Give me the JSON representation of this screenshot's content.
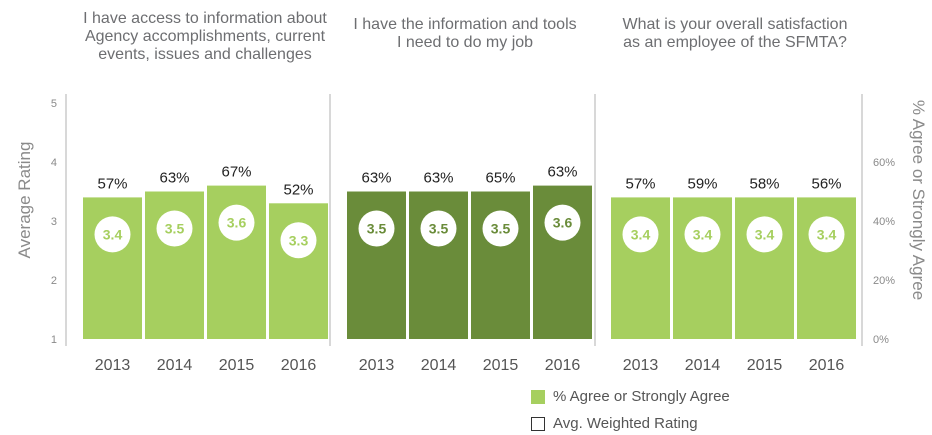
{
  "colors": {
    "light_green": "#a6cf5f",
    "dark_green": "#6a8c3a",
    "axis_text": "#8a8a8a",
    "divider": "#b0b0b0"
  },
  "chart_data": {
    "type": "bar",
    "left_axis": {
      "label": "Average Rating",
      "ticks": [
        "1",
        "2",
        "3",
        "4",
        "5"
      ],
      "range": [
        1,
        5
      ]
    },
    "right_axis": {
      "label": "% Agree or Strongly Agree",
      "ticks": [
        "0%",
        "20%",
        "40%",
        "60%"
      ],
      "range": [
        0,
        80
      ]
    },
    "groups": [
      {
        "title": "I have access to information about Agency accomplishments, current events, issues and challenges",
        "color": "light",
        "categories": [
          "2013",
          "2014",
          "2015",
          "2016"
        ],
        "percent_labels": [
          "57%",
          "63%",
          "67%",
          "52%"
        ],
        "percent_values": [
          57,
          63,
          67,
          52
        ],
        "rating_labels": [
          "3.4",
          "3.5",
          "3.6",
          "3.3"
        ],
        "rating_values": [
          3.4,
          3.5,
          3.6,
          3.3
        ]
      },
      {
        "title": "I have the information and tools I need to do my job",
        "color": "dark",
        "categories": [
          "2013",
          "2014",
          "2015",
          "2016"
        ],
        "percent_labels": [
          "63%",
          "63%",
          "65%",
          "63%"
        ],
        "percent_values": [
          63,
          63,
          65,
          63
        ],
        "rating_labels": [
          "3.5",
          "3.5",
          "3.5",
          "3.6"
        ],
        "rating_values": [
          3.5,
          3.5,
          3.5,
          3.6
        ]
      },
      {
        "title": "What is your overall satisfaction as an employee of the SFMTA?",
        "color": "light",
        "categories": [
          "2013",
          "2014",
          "2015",
          "2016"
        ],
        "percent_labels": [
          "57%",
          "59%",
          "58%",
          "56%"
        ],
        "percent_values": [
          57,
          59,
          58,
          56
        ],
        "rating_labels": [
          "3.4",
          "3.4",
          "3.4",
          "3.4"
        ],
        "rating_values": [
          3.4,
          3.4,
          3.4,
          3.4
        ]
      }
    ],
    "legend": [
      {
        "label": "% Agree or Strongly Agree",
        "swatch": "light_green"
      },
      {
        "label": "Avg. Weighted Rating",
        "swatch": "outline"
      }
    ]
  }
}
